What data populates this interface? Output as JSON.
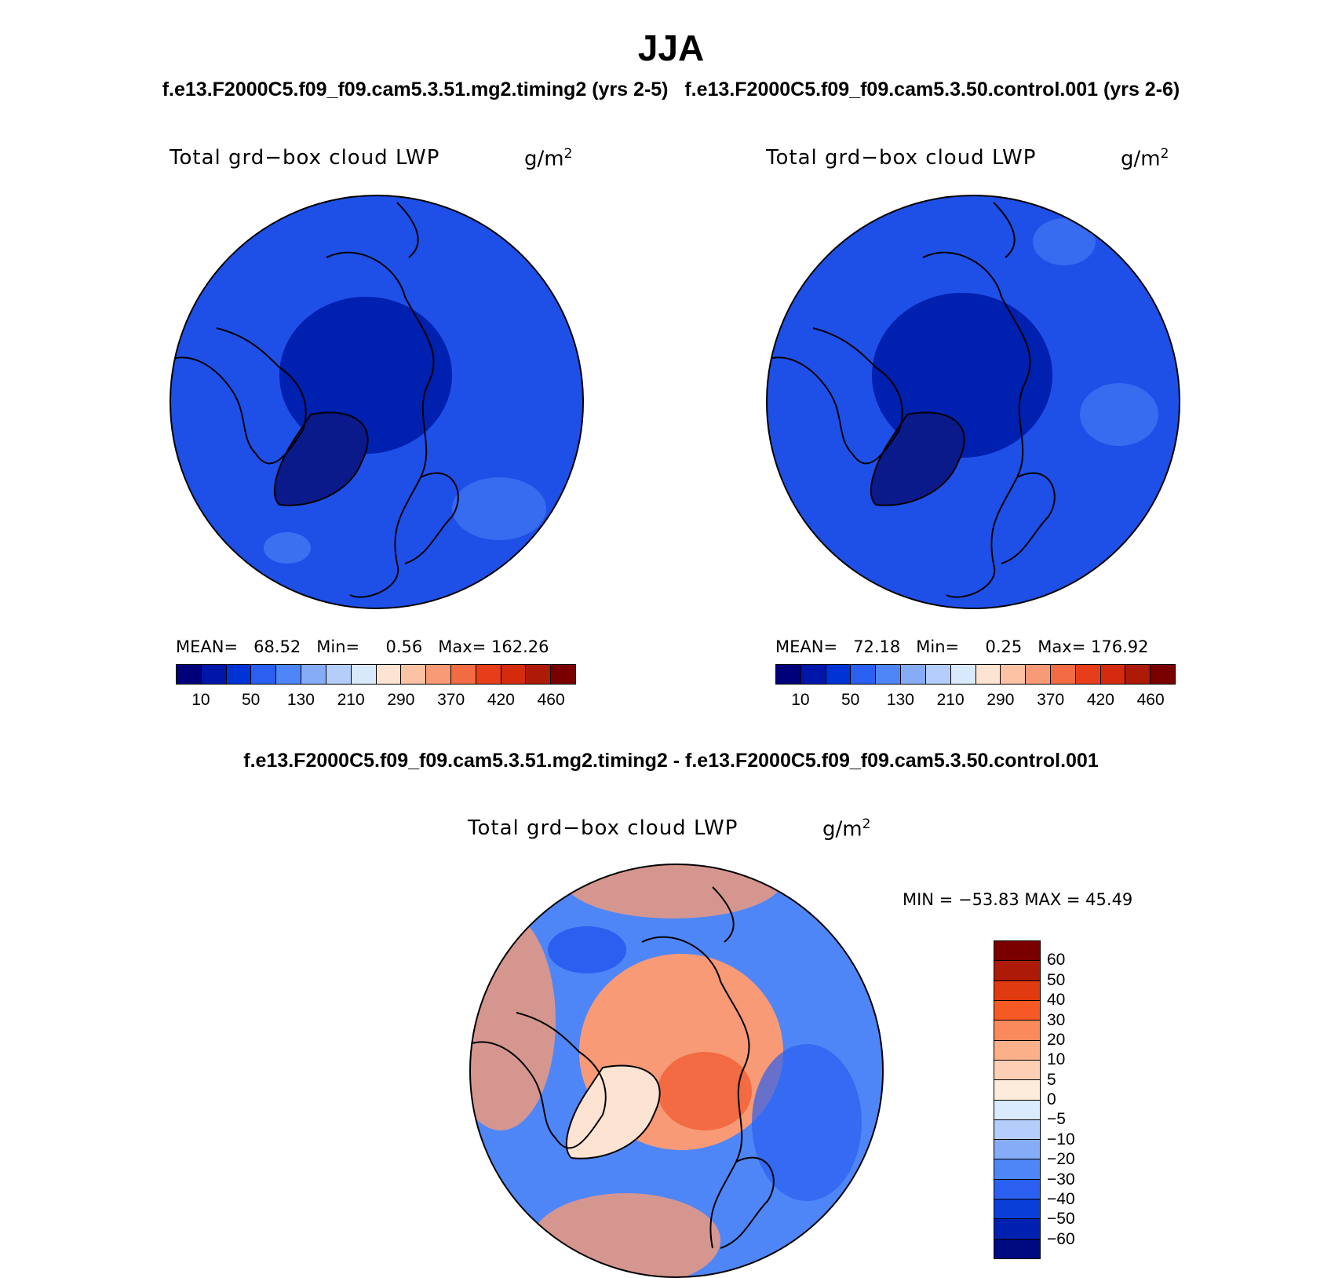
{
  "main_title": "JJA",
  "subtitles": {
    "left": "f.e13.F2000C5.f09_f09.cam5.3.51.mg2.timing2 (yrs 2-5)",
    "right": "f.e13.F2000C5.f09_f09.cam5.3.50.control.001 (yrs 2-6)"
  },
  "diff_title": "f.e13.F2000C5.f09_f09.cam5.3.51.mg2.timing2 - f.e13.F2000C5.f09_f09.cam5.3.50.control.001",
  "panels": [
    {
      "variable": "Total grd−box cloud LWP",
      "units": "g/m",
      "units_sup": "2",
      "mean_label": "MEAN=",
      "mean": "68.52",
      "min_label": "Min=",
      "min": "0.56",
      "max_label": "Max=",
      "max": "162.26"
    },
    {
      "variable": "Total grd−box cloud LWP",
      "units": "g/m",
      "units_sup": "2",
      "mean_label": "MEAN=",
      "mean": "72.18",
      "min_label": "Min=",
      "min": "0.25",
      "max_label": "Max=",
      "max": "176.92"
    }
  ],
  "diff_panel": {
    "variable": "Total grd−box cloud LWP",
    "units": "g/m",
    "units_sup": "2",
    "minmax": "MIN = −53.83 MAX =   45.49"
  },
  "colorbar_abs": {
    "colors": [
      "#00007a",
      "#0016a8",
      "#0033d6",
      "#2a5ff0",
      "#4f86f7",
      "#86acf7",
      "#b4cdfa",
      "#d9e9fc",
      "#fde4d2",
      "#fbc2a4",
      "#f89a76",
      "#f26b43",
      "#e83d1a",
      "#d42a0e",
      "#ad1a08",
      "#7a0000"
    ],
    "tick_labels": [
      "10",
      "50",
      "130",
      "210",
      "290",
      "370",
      "420",
      "460"
    ]
  },
  "colorbar_diff": {
    "colors": [
      "#7a0000",
      "#ad1a08",
      "#e03a10",
      "#f55a25",
      "#fa8a5c",
      "#fbb08a",
      "#fdd0b6",
      "#fdebdc",
      "#d9ebfc",
      "#b4cdfa",
      "#86acf7",
      "#4f86f7",
      "#2a5ff0",
      "#0a3ed8",
      "#0020b0",
      "#000a80"
    ],
    "tick_labels": [
      "60",
      "50",
      "40",
      "30",
      "20",
      "10",
      "5",
      "0",
      "−5",
      "−10",
      "−20",
      "−30",
      "−40",
      "−50",
      "−60"
    ]
  },
  "map_colors": {
    "ocean_base_abs": "#1e50e8",
    "deep_abs": "#0020b0",
    "darkest_abs": "#0a1a8a",
    "light_abs": "#4f86f7",
    "diff_base": "#4f86f7",
    "diff_warm": "#f89a76",
    "diff_hot": "#f26b43",
    "diff_pale": "#fde4d2",
    "diff_cool": "#2a5ff0"
  }
}
